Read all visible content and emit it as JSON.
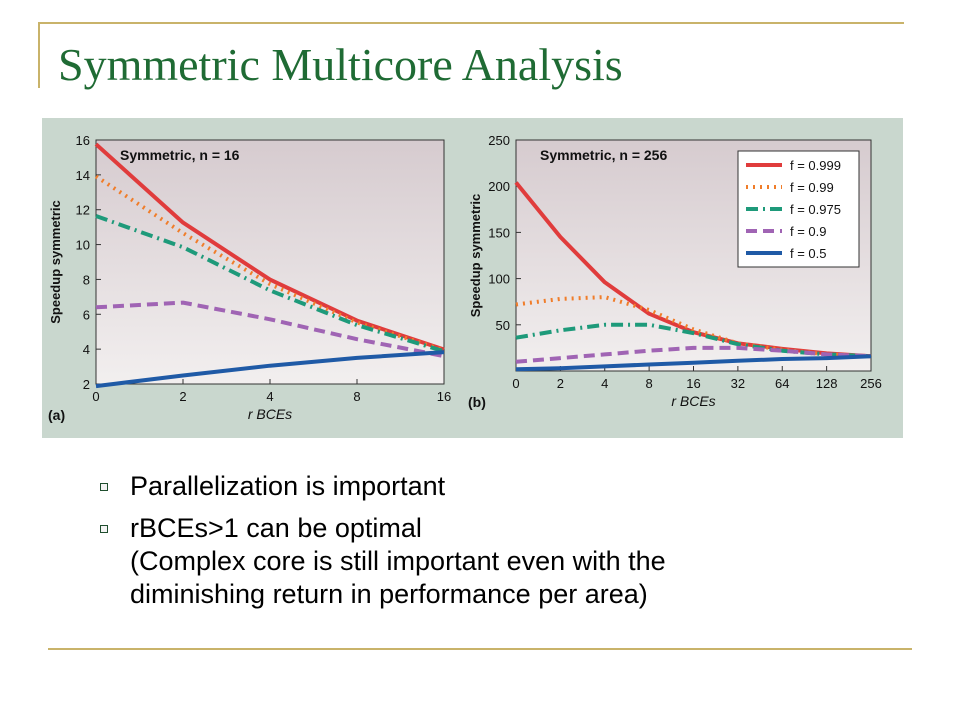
{
  "slide": {
    "title": "Symmetric Multicore Analysis",
    "bullets": [
      {
        "lines": [
          "Parallelization is important"
        ]
      },
      {
        "lines": [
          "rBCEs>1 can be optimal",
          "(Complex core is still important even with the",
          "diminishing return in performance per area)"
        ]
      }
    ]
  },
  "chart_data": [
    {
      "type": "line",
      "panel_label": "(a)",
      "title": "Symmetric, n = 16",
      "xlabel": "r BCEs",
      "ylabel": "Speedup symmetric",
      "x_scale": "log2",
      "x_ticks": [
        "0",
        "2",
        "4",
        "8",
        "16"
      ],
      "y_ticks": [
        "2",
        "4",
        "6",
        "8",
        "10",
        "12",
        "14",
        "16"
      ],
      "ylim": [
        2,
        16
      ],
      "x": [
        1,
        2,
        4,
        8,
        16
      ],
      "series": [
        {
          "name": "f = 0.999",
          "color": "#e03c3c",
          "dash": "solid",
          "values": [
            15.76,
            11.26,
            7.99,
            5.64,
            3.98
          ]
        },
        {
          "name": "f = 0.99",
          "color": "#f07d2a",
          "dash": "dot",
          "values": [
            13.91,
            10.66,
            7.73,
            5.53,
            3.94
          ]
        },
        {
          "name": "f = 0.975",
          "color": "#1e9a7a",
          "dash": "dashdot",
          "values": [
            11.64,
            9.85,
            7.37,
            5.38,
            3.88
          ]
        },
        {
          "name": "f = 0.9",
          "color": "#a064b4",
          "dash": "dash",
          "values": [
            6.4,
            6.67,
            5.71,
            4.57,
            3.6
          ]
        },
        {
          "name": "f = 0.5",
          "color": "#1f5aa6",
          "dash": "solid",
          "values": [
            1.88,
            2.49,
            3.05,
            3.5,
            3.83
          ]
        }
      ]
    },
    {
      "type": "line",
      "panel_label": "(b)",
      "title": "Symmetric, n = 256",
      "xlabel": "r BCEs",
      "ylabel": "Speedup symmetric",
      "x_scale": "log2",
      "x_ticks": [
        "0",
        "2",
        "4",
        "8",
        "16",
        "32",
        "64",
        "128",
        "256"
      ],
      "y_ticks": [
        "50",
        "100",
        "150",
        "200",
        "250"
      ],
      "ylim": [
        0,
        250
      ],
      "legend": "top-right",
      "x": [
        1,
        2,
        4,
        8,
        16,
        32,
        64,
        128,
        256
      ],
      "series": [
        {
          "name": "f = 0.999",
          "color": "#e03c3c",
          "dash": "solid",
          "values": [
            204,
            145,
            96,
            62,
            42,
            30,
            24,
            19,
            16
          ]
        },
        {
          "name": "f = 0.99",
          "color": "#f07d2a",
          "dash": "dot",
          "values": [
            72,
            78,
            80,
            66,
            45,
            30,
            23,
            18,
            16
          ]
        },
        {
          "name": "f = 0.975",
          "color": "#1e9a7a",
          "dash": "dashdot",
          "values": [
            36,
            44,
            50,
            50,
            41,
            29,
            22,
            18,
            16
          ]
        },
        {
          "name": "f = 0.9",
          "color": "#a064b4",
          "dash": "dash",
          "values": [
            10,
            14,
            18,
            22,
            25,
            25,
            22,
            18,
            16
          ]
        },
        {
          "name": "f = 0.5",
          "color": "#1f5aa6",
          "dash": "solid",
          "values": [
            2,
            3,
            5,
            7,
            9,
            11,
            13,
            14,
            16
          ]
        }
      ]
    }
  ]
}
